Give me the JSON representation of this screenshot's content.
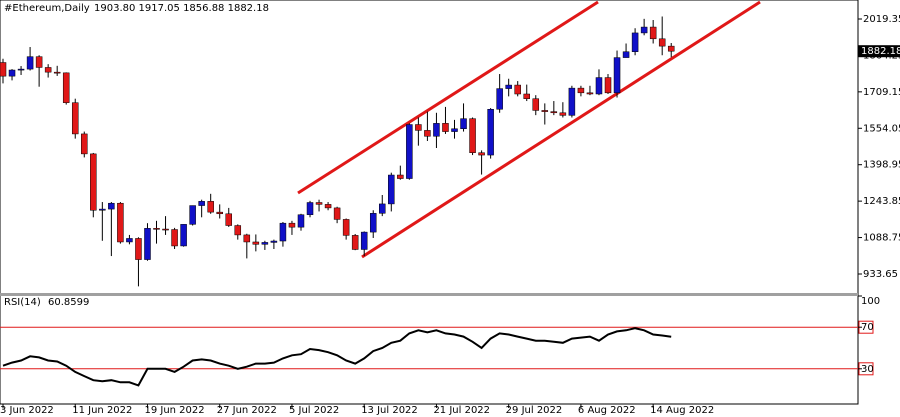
{
  "chart_data": [
    {
      "type": "candlestick",
      "symbol": "#Ethereum,Daily",
      "ohlc_text": "1903.80 1917.05 1856.88 1882.18",
      "categories": [
        "3 Jun 2022",
        null,
        null,
        null,
        null,
        null,
        null,
        null,
        "11 Jun 2022",
        null,
        null,
        null,
        null,
        null,
        null,
        null,
        "19 Jun 2022",
        null,
        null,
        null,
        null,
        null,
        null,
        null,
        "27 Jun 2022",
        null,
        null,
        null,
        null,
        null,
        null,
        null,
        "5 Jul 2022",
        null,
        null,
        null,
        null,
        null,
        null,
        null,
        "13 Jul 2022",
        null,
        null,
        null,
        null,
        null,
        null,
        null,
        "21 Jul 2022",
        null,
        null,
        null,
        null,
        null,
        null,
        null,
        "29 Jul 2022",
        null,
        null,
        null,
        null,
        null,
        null,
        null,
        "6 Aug 2022",
        null,
        null,
        null,
        null,
        null,
        null,
        null,
        "14 Aug 2022",
        null,
        null
      ],
      "open": [
        1834,
        1776,
        1802,
        1806,
        1859,
        1813,
        1793,
        1790,
        1663,
        1530,
        1445,
        1205,
        1210,
        1235,
        1070,
        1085,
        995,
        1128,
        1125,
        1123,
        1053,
        1145,
        1225,
        1243,
        1197,
        1190,
        1140,
        1100,
        1070,
        1060,
        1068,
        1074,
        1150,
        1133,
        1186,
        1238,
        1230,
        1215,
        1166,
        1098,
        1038,
        1112,
        1192,
        1232,
        1355,
        1340,
        1570,
        1545,
        1520,
        1575,
        1540,
        1552,
        1595,
        1450,
        1440,
        1635,
        1723,
        1738,
        1700,
        1680,
        1630,
        1625,
        1620,
        1609,
        1725,
        1705,
        1700,
        1770,
        1705,
        1855,
        1880,
        1960,
        1985,
        1935,
        1903.8
      ],
      "high": [
        1850,
        1806,
        1819,
        1900,
        1865,
        1827,
        1820,
        1792,
        1680,
        1540,
        1449,
        1240,
        1240,
        1240,
        1100,
        1090,
        1150,
        1160,
        1180,
        1130,
        1145,
        1225,
        1250,
        1275,
        1230,
        1215,
        1145,
        1105,
        1102,
        1075,
        1080,
        1155,
        1160,
        1190,
        1245,
        1250,
        1240,
        1220,
        1170,
        1104,
        1115,
        1205,
        1270,
        1365,
        1395,
        1575,
        1600,
        1625,
        1620,
        1645,
        1590,
        1660,
        1600,
        1460,
        1640,
        1785,
        1765,
        1755,
        1740,
        1695,
        1660,
        1670,
        1665,
        1735,
        1735,
        1735,
        1805,
        1785,
        1885,
        1915,
        1980,
        2020,
        2015,
        2030,
        1917.05
      ],
      "low": [
        1745,
        1758,
        1781,
        1800,
        1731,
        1770,
        1777,
        1655,
        1510,
        1430,
        1175,
        1075,
        1010,
        1063,
        1060,
        881,
        990,
        1063,
        1100,
        1040,
        1050,
        1140,
        1175,
        1190,
        1170,
        1134,
        1080,
        1000,
        1030,
        1036,
        1040,
        1050,
        1100,
        1118,
        1175,
        1200,
        1205,
        1150,
        1080,
        1035,
        1010,
        1087,
        1180,
        1200,
        1335,
        1335,
        1480,
        1500,
        1470,
        1530,
        1510,
        1540,
        1440,
        1357,
        1425,
        1620,
        1690,
        1690,
        1670,
        1610,
        1570,
        1610,
        1600,
        1600,
        1690,
        1695,
        1695,
        1700,
        1685,
        1855,
        1865,
        1950,
        1915,
        1865,
        1856.88
      ],
      "close": [
        1776,
        1802,
        1806,
        1859,
        1813,
        1793,
        1790,
        1663,
        1530,
        1445,
        1205,
        1210,
        1235,
        1070,
        1085,
        995,
        1128,
        1125,
        1123,
        1053,
        1145,
        1225,
        1243,
        1197,
        1190,
        1140,
        1100,
        1070,
        1060,
        1068,
        1074,
        1150,
        1133,
        1186,
        1238,
        1230,
        1215,
        1166,
        1098,
        1038,
        1112,
        1192,
        1232,
        1355,
        1340,
        1570,
        1545,
        1520,
        1575,
        1540,
        1552,
        1595,
        1450,
        1440,
        1635,
        1723,
        1738,
        1700,
        1680,
        1630,
        1625,
        1620,
        1609,
        1725,
        1705,
        1700,
        1770,
        1705,
        1855,
        1880,
        1960,
        1985,
        1935,
        1903.8,
        1882.18
      ],
      "up_color": "#1010c8",
      "down_color": "#e01818",
      "ylim": [
        852.7,
        2100.2
      ],
      "yticks": [
        933.65,
        1088.75,
        1243.85,
        1398.95,
        1554.05,
        1709.15,
        1864.25,
        2019.35
      ],
      "grid": false
    },
    {
      "type": "line",
      "label": "RSI(14)",
      "values": [
        33,
        36,
        38,
        42,
        41,
        38,
        37,
        33,
        27,
        23,
        19,
        18,
        19,
        17,
        17,
        14,
        30,
        30,
        30,
        27,
        32,
        38,
        39,
        38,
        35,
        33,
        30,
        32,
        35,
        35,
        36,
        40,
        43,
        44,
        49,
        48,
        46,
        43,
        38,
        35,
        40,
        47,
        50,
        55,
        57,
        64,
        67,
        65,
        67,
        64,
        63,
        61,
        56,
        50,
        59,
        64,
        63,
        61,
        59,
        57,
        57,
        56,
        55,
        59,
        60,
        61,
        57,
        63,
        66,
        67,
        69,
        67,
        63,
        62,
        60.8599
      ],
      "color": "#000000",
      "levels": [
        30,
        70
      ],
      "level_color": "#e01818",
      "ylim": [
        0,
        100
      ],
      "yticks": [
        30,
        70,
        100
      ]
    }
  ]
}
